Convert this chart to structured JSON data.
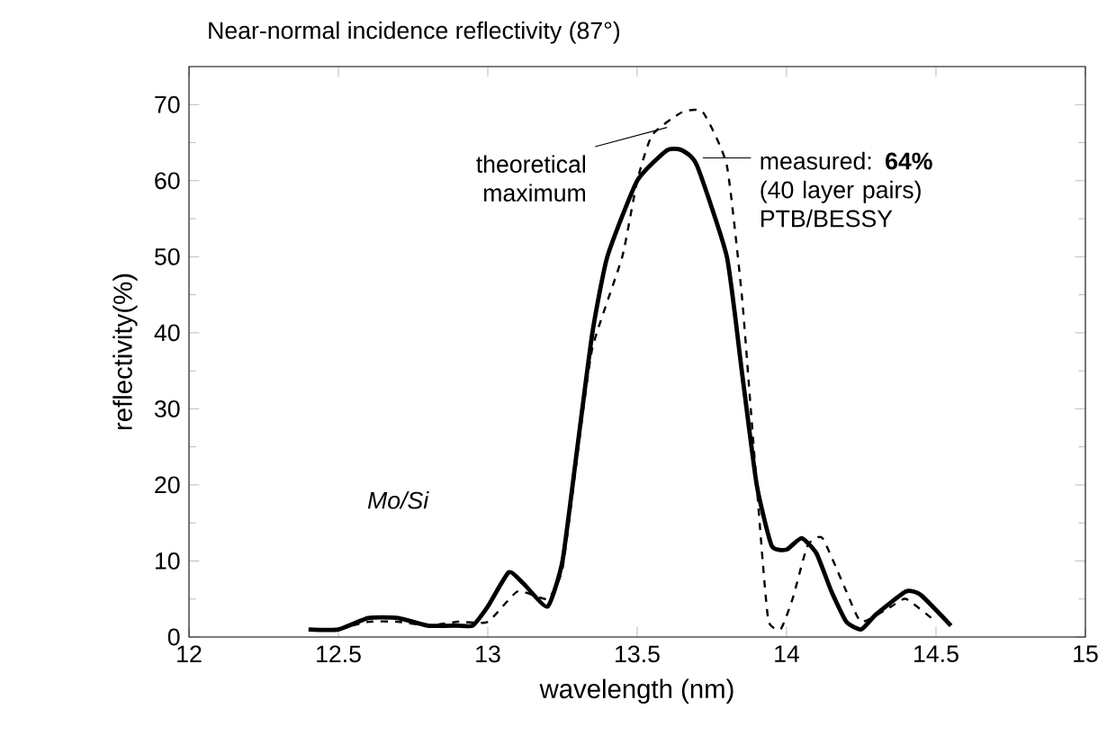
{
  "chart_data": {
    "type": "line",
    "title": "Near-normal incidence reflectivity (87°)",
    "xlabel": "wavelength (nm)",
    "ylabel": "reflectivity(%)",
    "xlim": [
      12,
      15
    ],
    "ylim": [
      0,
      75
    ],
    "xticks": [
      12,
      12.5,
      13,
      13.5,
      14,
      14.5,
      15
    ],
    "yticks": [
      0,
      10,
      20,
      30,
      40,
      50,
      60,
      70
    ],
    "grid": false,
    "marker": "none",
    "series": [
      {
        "color": "#000000",
        "line_style": "solid",
        "x": [
          12.4,
          12.5,
          12.6,
          12.7,
          12.8,
          12.9,
          12.95,
          13.0,
          13.07,
          13.12,
          13.2,
          13.25,
          13.3,
          13.35,
          13.4,
          13.5,
          13.6,
          13.65,
          13.7,
          13.8,
          13.85,
          13.9,
          13.95,
          14.0,
          14.05,
          14.1,
          14.15,
          14.2,
          14.25,
          14.3,
          14.4,
          14.45,
          14.55
        ],
        "values": [
          1,
          1,
          2.5,
          2.5,
          1.5,
          1.5,
          1.5,
          4,
          8.5,
          7,
          4,
          10,
          25,
          40,
          50,
          60,
          64,
          64,
          62,
          50,
          35,
          20,
          12,
          11.5,
          13,
          11,
          6,
          2,
          1,
          3,
          6,
          5.5,
          1.5
        ]
      },
      {
        "color": "#000000",
        "line_style": "dashed",
        "x": [
          12.5,
          12.6,
          12.7,
          12.8,
          12.9,
          13.0,
          13.1,
          13.2,
          13.25,
          13.3,
          13.35,
          13.45,
          13.5,
          13.55,
          13.65,
          13.72,
          13.8,
          13.85,
          13.88,
          13.92,
          13.94,
          13.98,
          14.02,
          14.07,
          14.12,
          14.2,
          14.25,
          14.35,
          14.4,
          14.5
        ],
        "values": [
          1,
          2,
          2,
          1.5,
          2,
          2,
          6,
          5,
          9,
          24,
          38,
          50,
          60,
          66,
          69,
          69,
          62,
          45,
          30,
          10,
          2,
          1,
          5,
          12,
          13,
          6,
          2,
          4,
          5,
          2
        ]
      }
    ],
    "annotations": [
      {
        "text": "theoretical maximum",
        "x": 13.6,
        "y": 67
      },
      {
        "text": "measured: **64%** (40 layer pairs) PTB/BESSY",
        "x": 13.72,
        "y": 63
      },
      "*Mo/Si*"
    ]
  }
}
